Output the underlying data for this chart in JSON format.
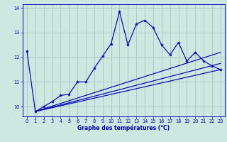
{
  "xlabel": "Graphe des températures (°C)",
  "background_color": "#cce8e0",
  "grid_color": "#aaccc4",
  "line_color": "#0000bb",
  "axis_color": "#0000bb",
  "xlim": [
    -0.5,
    23.5
  ],
  "ylim": [
    9.6,
    14.15
  ],
  "yticks": [
    10,
    11,
    12,
    13,
    14
  ],
  "xticks": [
    0,
    1,
    2,
    3,
    4,
    5,
    6,
    7,
    8,
    9,
    10,
    11,
    12,
    13,
    14,
    15,
    16,
    17,
    18,
    19,
    20,
    21,
    22,
    23
  ],
  "curve1_x": [
    0,
    1,
    2,
    3,
    4,
    5,
    6,
    7,
    8,
    9,
    10,
    11,
    12,
    13,
    14,
    15,
    16,
    17,
    18,
    19,
    20,
    21,
    22,
    23
  ],
  "curve1_y": [
    12.25,
    9.8,
    10.0,
    10.2,
    10.45,
    10.5,
    11.0,
    11.0,
    11.55,
    12.05,
    12.55,
    13.85,
    12.5,
    13.35,
    13.5,
    13.2,
    12.5,
    12.1,
    12.6,
    11.85,
    12.2,
    11.85,
    11.65,
    11.5
  ],
  "line2_x": [
    1,
    23
  ],
  "line2_y": [
    9.8,
    11.5
  ],
  "line3_x": [
    1,
    23
  ],
  "line3_y": [
    9.8,
    11.75
  ],
  "line4_x": [
    1,
    23
  ],
  "line4_y": [
    9.8,
    12.2
  ]
}
